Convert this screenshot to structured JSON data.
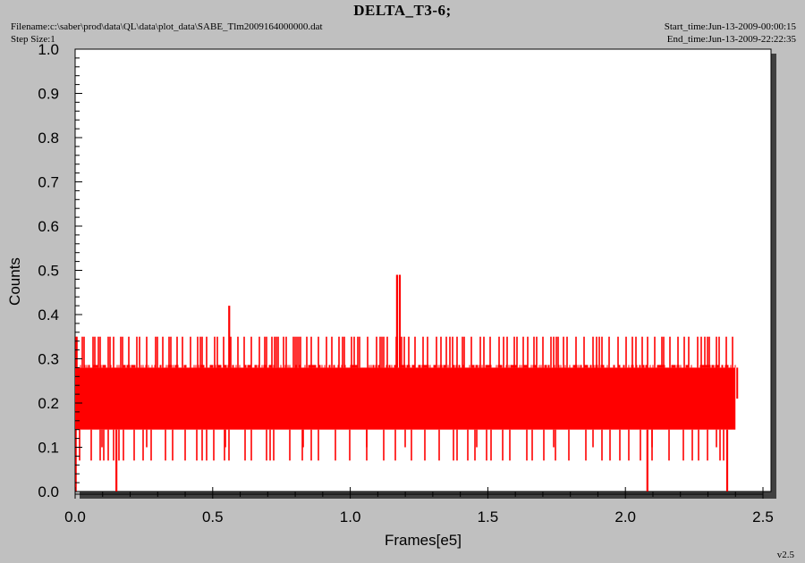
{
  "header": {
    "title": "DELTA_T3-6;",
    "filename": "Filename:c:\\saber\\prod\\data\\QL\\data\\plot_data\\SABE_Tlm2009164000000.dat",
    "step_size": "Step Size:1",
    "start_time": "Start_time:Jun-13-2009-00:00:15",
    "end_time": "End_time:Jun-13-2009-22:22:35"
  },
  "footer": {
    "version": "v2.5"
  },
  "colors": {
    "series": "#ff0000",
    "plot_bg": "#ffffff",
    "page_bg": "#c0c0c0"
  },
  "chart_data": {
    "type": "line",
    "title": "DELTA_T3-6;",
    "xlabel": "Frames[e5]",
    "ylabel": "Counts",
    "xlim": [
      0.0,
      2.5
    ],
    "ylim": [
      0.0,
      1.0
    ],
    "xticks": [
      "0.0",
      "0.5",
      "1.0",
      "1.5",
      "2.0",
      "2.5"
    ],
    "yticks": [
      "0.0",
      "0.1",
      "0.2",
      "0.3",
      "0.4",
      "0.5",
      "0.6",
      "0.7",
      "0.8",
      "0.9",
      "1.0"
    ],
    "grid": false,
    "series": [
      {
        "color": "#ff0000",
        "x_range": [
          0.0,
          2.4
        ],
        "band_low": 0.14,
        "band_high": 0.28,
        "upper_spike_level": 0.35,
        "lower_spike_level": 0.07,
        "spikes": [
          {
            "x": 0.56,
            "y": 0.42
          },
          {
            "x": 1.17,
            "y": 0.49
          },
          {
            "x": 1.18,
            "y": 0.49
          },
          {
            "x": 0.15,
            "y": 0.0
          },
          {
            "x": 2.08,
            "y": 0.0
          },
          {
            "x": 2.37,
            "y": 0.0
          }
        ]
      }
    ]
  }
}
